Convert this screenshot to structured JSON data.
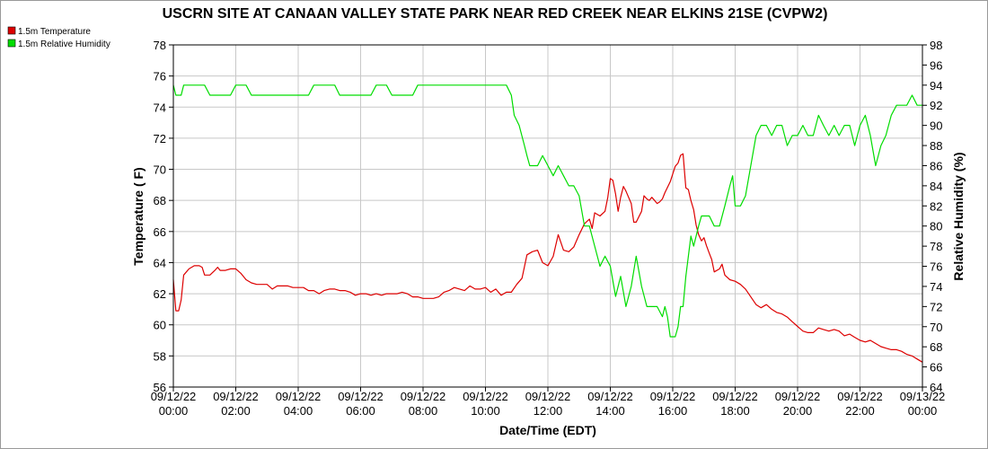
{
  "chart_data": {
    "type": "line",
    "title": "USCRN SITE AT CANAAN VALLEY STATE PARK NEAR RED CREEK NEAR ELKINS 21SE (CVPW2)",
    "xlabel": "Date/Time (EDT)",
    "ylabel_left": "Temperature ( F)",
    "ylabel_right": "Relative Humidity (%)",
    "x_range_hours": [
      0,
      24
    ],
    "ylim_left": [
      56,
      78
    ],
    "ylim_right": [
      64,
      98
    ],
    "y_ticks_left": [
      56,
      58,
      60,
      62,
      64,
      66,
      68,
      70,
      72,
      74,
      76,
      78
    ],
    "y_ticks_right": [
      64,
      66,
      68,
      70,
      72,
      74,
      76,
      78,
      80,
      82,
      84,
      86,
      88,
      90,
      92,
      94,
      96,
      98
    ],
    "x_ticks": [
      {
        "hour": 0,
        "date": "09/12/22",
        "time": "00:00"
      },
      {
        "hour": 2,
        "date": "09/12/22",
        "time": "02:00"
      },
      {
        "hour": 4,
        "date": "09/12/22",
        "time": "04:00"
      },
      {
        "hour": 6,
        "date": "09/12/22",
        "time": "06:00"
      },
      {
        "hour": 8,
        "date": "09/12/22",
        "time": "08:00"
      },
      {
        "hour": 10,
        "date": "09/12/22",
        "time": "10:00"
      },
      {
        "hour": 12,
        "date": "09/12/22",
        "time": "12:00"
      },
      {
        "hour": 14,
        "date": "09/12/22",
        "time": "14:00"
      },
      {
        "hour": 16,
        "date": "09/12/22",
        "time": "16:00"
      },
      {
        "hour": 18,
        "date": "09/12/22",
        "time": "18:00"
      },
      {
        "hour": 20,
        "date": "09/12/22",
        "time": "20:00"
      },
      {
        "hour": 22,
        "date": "09/12/22",
        "time": "22:00"
      },
      {
        "hour": 24,
        "date": "09/13/22",
        "time": "00:00"
      }
    ],
    "grid": true,
    "legend_position": "top-left",
    "series": [
      {
        "name": "1.5m Temperature",
        "color": "#dd0000",
        "axis": "left",
        "points": [
          [
            0.0,
            62.9
          ],
          [
            0.08,
            60.9
          ],
          [
            0.17,
            60.9
          ],
          [
            0.25,
            61.6
          ],
          [
            0.33,
            63.2
          ],
          [
            0.5,
            63.6
          ],
          [
            0.67,
            63.8
          ],
          [
            0.83,
            63.8
          ],
          [
            0.92,
            63.7
          ],
          [
            1.0,
            63.2
          ],
          [
            1.17,
            63.2
          ],
          [
            1.33,
            63.5
          ],
          [
            1.42,
            63.7
          ],
          [
            1.5,
            63.5
          ],
          [
            1.67,
            63.5
          ],
          [
            1.83,
            63.6
          ],
          [
            2.0,
            63.6
          ],
          [
            2.17,
            63.3
          ],
          [
            2.33,
            62.9
          ],
          [
            2.5,
            62.7
          ],
          [
            2.67,
            62.6
          ],
          [
            2.83,
            62.6
          ],
          [
            3.0,
            62.6
          ],
          [
            3.17,
            62.3
          ],
          [
            3.33,
            62.5
          ],
          [
            3.5,
            62.5
          ],
          [
            3.67,
            62.5
          ],
          [
            3.83,
            62.4
          ],
          [
            4.0,
            62.4
          ],
          [
            4.17,
            62.4
          ],
          [
            4.33,
            62.2
          ],
          [
            4.5,
            62.2
          ],
          [
            4.67,
            62.0
          ],
          [
            4.83,
            62.2
          ],
          [
            5.0,
            62.3
          ],
          [
            5.17,
            62.3
          ],
          [
            5.33,
            62.2
          ],
          [
            5.5,
            62.2
          ],
          [
            5.67,
            62.1
          ],
          [
            5.83,
            61.9
          ],
          [
            6.0,
            62.0
          ],
          [
            6.17,
            62.0
          ],
          [
            6.33,
            61.9
          ],
          [
            6.5,
            62.0
          ],
          [
            6.67,
            61.9
          ],
          [
            6.83,
            62.0
          ],
          [
            7.0,
            62.0
          ],
          [
            7.17,
            62.0
          ],
          [
            7.33,
            62.1
          ],
          [
            7.5,
            62.0
          ],
          [
            7.67,
            61.8
          ],
          [
            7.83,
            61.8
          ],
          [
            8.0,
            61.7
          ],
          [
            8.17,
            61.7
          ],
          [
            8.33,
            61.7
          ],
          [
            8.5,
            61.8
          ],
          [
            8.67,
            62.1
          ],
          [
            8.83,
            62.2
          ],
          [
            9.0,
            62.4
          ],
          [
            9.17,
            62.3
          ],
          [
            9.33,
            62.2
          ],
          [
            9.5,
            62.5
          ],
          [
            9.67,
            62.3
          ],
          [
            9.83,
            62.3
          ],
          [
            10.0,
            62.4
          ],
          [
            10.17,
            62.1
          ],
          [
            10.33,
            62.3
          ],
          [
            10.5,
            61.9
          ],
          [
            10.67,
            62.1
          ],
          [
            10.83,
            62.1
          ],
          [
            11.0,
            62.6
          ],
          [
            11.17,
            63.0
          ],
          [
            11.33,
            64.5
          ],
          [
            11.5,
            64.7
          ],
          [
            11.67,
            64.8
          ],
          [
            11.83,
            64.0
          ],
          [
            12.0,
            63.8
          ],
          [
            12.17,
            64.4
          ],
          [
            12.33,
            65.8
          ],
          [
            12.5,
            64.8
          ],
          [
            12.67,
            64.7
          ],
          [
            12.83,
            65.0
          ],
          [
            13.0,
            65.8
          ],
          [
            13.17,
            66.5
          ],
          [
            13.33,
            66.8
          ],
          [
            13.42,
            66.2
          ],
          [
            13.5,
            67.2
          ],
          [
            13.67,
            67.0
          ],
          [
            13.83,
            67.3
          ],
          [
            13.92,
            68.2
          ],
          [
            14.0,
            69.4
          ],
          [
            14.08,
            69.3
          ],
          [
            14.17,
            68.4
          ],
          [
            14.25,
            67.3
          ],
          [
            14.33,
            68.2
          ],
          [
            14.42,
            68.9
          ],
          [
            14.5,
            68.6
          ],
          [
            14.67,
            67.8
          ],
          [
            14.75,
            66.6
          ],
          [
            14.83,
            66.6
          ],
          [
            15.0,
            67.3
          ],
          [
            15.08,
            68.3
          ],
          [
            15.17,
            68.1
          ],
          [
            15.25,
            68.0
          ],
          [
            15.33,
            68.2
          ],
          [
            15.42,
            68.0
          ],
          [
            15.5,
            67.8
          ],
          [
            15.58,
            67.9
          ],
          [
            15.67,
            68.1
          ],
          [
            15.75,
            68.5
          ],
          [
            15.92,
            69.2
          ],
          [
            16.08,
            70.2
          ],
          [
            16.17,
            70.4
          ],
          [
            16.25,
            70.9
          ],
          [
            16.33,
            71.0
          ],
          [
            16.42,
            68.8
          ],
          [
            16.5,
            68.7
          ],
          [
            16.58,
            68.0
          ],
          [
            16.67,
            67.4
          ],
          [
            16.75,
            66.4
          ],
          [
            16.83,
            65.8
          ],
          [
            16.92,
            65.4
          ],
          [
            17.0,
            65.6
          ],
          [
            17.08,
            65.1
          ],
          [
            17.17,
            64.6
          ],
          [
            17.25,
            64.2
          ],
          [
            17.33,
            63.4
          ],
          [
            17.5,
            63.6
          ],
          [
            17.58,
            63.9
          ],
          [
            17.67,
            63.2
          ],
          [
            17.83,
            62.9
          ],
          [
            18.0,
            62.8
          ],
          [
            18.17,
            62.6
          ],
          [
            18.33,
            62.3
          ],
          [
            18.5,
            61.8
          ],
          [
            18.67,
            61.3
          ],
          [
            18.83,
            61.1
          ],
          [
            19.0,
            61.3
          ],
          [
            19.17,
            61.0
          ],
          [
            19.33,
            60.8
          ],
          [
            19.5,
            60.7
          ],
          [
            19.67,
            60.5
          ],
          [
            19.83,
            60.2
          ],
          [
            20.0,
            59.9
          ],
          [
            20.17,
            59.6
          ],
          [
            20.33,
            59.5
          ],
          [
            20.5,
            59.5
          ],
          [
            20.67,
            59.8
          ],
          [
            20.83,
            59.7
          ],
          [
            21.0,
            59.6
          ],
          [
            21.17,
            59.7
          ],
          [
            21.33,
            59.6
          ],
          [
            21.5,
            59.3
          ],
          [
            21.67,
            59.4
          ],
          [
            21.83,
            59.2
          ],
          [
            22.0,
            59.0
          ],
          [
            22.17,
            58.9
          ],
          [
            22.33,
            59.0
          ],
          [
            22.5,
            58.8
          ],
          [
            22.67,
            58.6
          ],
          [
            22.83,
            58.5
          ],
          [
            23.0,
            58.4
          ],
          [
            23.17,
            58.4
          ],
          [
            23.33,
            58.3
          ],
          [
            23.5,
            58.1
          ],
          [
            23.67,
            58.0
          ],
          [
            23.83,
            57.8
          ],
          [
            24.0,
            57.6
          ]
        ]
      },
      {
        "name": "1.5m Relative Humidity",
        "color": "#00dd00",
        "axis": "right",
        "points": [
          [
            0.0,
            94.0
          ],
          [
            0.08,
            93.0
          ],
          [
            0.25,
            93.0
          ],
          [
            0.33,
            94.0
          ],
          [
            1.0,
            94.0
          ],
          [
            1.17,
            93.0
          ],
          [
            1.83,
            93.0
          ],
          [
            2.0,
            94.0
          ],
          [
            2.33,
            94.0
          ],
          [
            2.5,
            93.0
          ],
          [
            3.17,
            93.0
          ],
          [
            3.5,
            93.0
          ],
          [
            4.0,
            93.0
          ],
          [
            4.33,
            93.0
          ],
          [
            4.5,
            94.0
          ],
          [
            5.17,
            94.0
          ],
          [
            5.33,
            93.0
          ],
          [
            6.33,
            93.0
          ],
          [
            6.5,
            94.0
          ],
          [
            6.83,
            94.0
          ],
          [
            7.0,
            93.0
          ],
          [
            7.67,
            93.0
          ],
          [
            7.83,
            94.0
          ],
          [
            10.5,
            94.0
          ],
          [
            10.67,
            94.0
          ],
          [
            10.83,
            93.0
          ],
          [
            10.92,
            91.0
          ],
          [
            11.08,
            90.0
          ],
          [
            11.25,
            88.0
          ],
          [
            11.33,
            87.0
          ],
          [
            11.42,
            86.0
          ],
          [
            11.5,
            86.0
          ],
          [
            11.67,
            86.0
          ],
          [
            11.83,
            87.0
          ],
          [
            12.0,
            86.0
          ],
          [
            12.17,
            85.0
          ],
          [
            12.33,
            86.0
          ],
          [
            12.5,
            85.0
          ],
          [
            12.67,
            84.0
          ],
          [
            12.83,
            84.0
          ],
          [
            13.0,
            83.0
          ],
          [
            13.17,
            80.0
          ],
          [
            13.33,
            80.0
          ],
          [
            13.5,
            78.0
          ],
          [
            13.67,
            76.0
          ],
          [
            13.83,
            77.0
          ],
          [
            14.0,
            76.0
          ],
          [
            14.17,
            73.0
          ],
          [
            14.33,
            75.0
          ],
          [
            14.5,
            72.0
          ],
          [
            14.67,
            74.0
          ],
          [
            14.83,
            77.0
          ],
          [
            15.0,
            74.0
          ],
          [
            15.17,
            72.0
          ],
          [
            15.33,
            72.0
          ],
          [
            15.5,
            72.0
          ],
          [
            15.67,
            71.0
          ],
          [
            15.75,
            72.0
          ],
          [
            15.83,
            71.0
          ],
          [
            15.92,
            69.0
          ],
          [
            16.08,
            69.0
          ],
          [
            16.17,
            70.0
          ],
          [
            16.25,
            72.0
          ],
          [
            16.33,
            72.0
          ],
          [
            16.42,
            75.0
          ],
          [
            16.5,
            77.0
          ],
          [
            16.58,
            79.0
          ],
          [
            16.67,
            78.0
          ],
          [
            16.83,
            80.0
          ],
          [
            16.92,
            81.0
          ],
          [
            17.17,
            81.0
          ],
          [
            17.33,
            80.0
          ],
          [
            17.5,
            80.0
          ],
          [
            17.67,
            82.0
          ],
          [
            17.83,
            84.0
          ],
          [
            17.92,
            85.0
          ],
          [
            18.0,
            82.0
          ],
          [
            18.17,
            82.0
          ],
          [
            18.33,
            83.0
          ],
          [
            18.5,
            86.0
          ],
          [
            18.67,
            89.0
          ],
          [
            18.83,
            90.0
          ],
          [
            19.0,
            90.0
          ],
          [
            19.17,
            89.0
          ],
          [
            19.33,
            90.0
          ],
          [
            19.5,
            90.0
          ],
          [
            19.67,
            88.0
          ],
          [
            19.83,
            89.0
          ],
          [
            20.0,
            89.0
          ],
          [
            20.17,
            90.0
          ],
          [
            20.33,
            89.0
          ],
          [
            20.5,
            89.0
          ],
          [
            20.67,
            91.0
          ],
          [
            20.83,
            90.0
          ],
          [
            21.0,
            89.0
          ],
          [
            21.17,
            90.0
          ],
          [
            21.33,
            89.0
          ],
          [
            21.5,
            90.0
          ],
          [
            21.67,
            90.0
          ],
          [
            21.83,
            88.0
          ],
          [
            22.0,
            90.0
          ],
          [
            22.17,
            91.0
          ],
          [
            22.33,
            89.0
          ],
          [
            22.5,
            86.0
          ],
          [
            22.67,
            88.0
          ],
          [
            22.83,
            89.0
          ],
          [
            23.0,
            91.0
          ],
          [
            23.17,
            92.0
          ],
          [
            23.33,
            92.0
          ],
          [
            23.5,
            92.0
          ],
          [
            23.67,
            93.0
          ],
          [
            23.83,
            92.0
          ],
          [
            24.0,
            92.0
          ]
        ]
      }
    ]
  }
}
